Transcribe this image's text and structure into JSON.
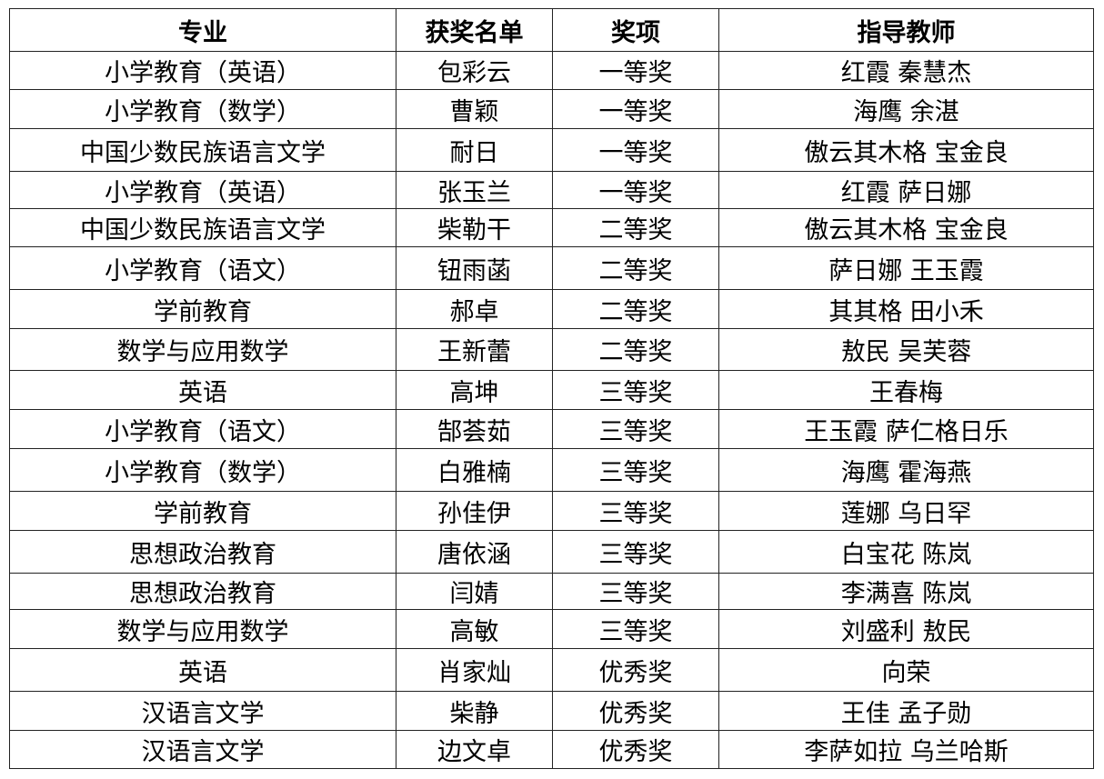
{
  "headers": [
    "专业",
    "获奖名单",
    "奖项",
    "指导教师"
  ],
  "rows": [
    [
      "小学教育（英语）",
      "包彩云",
      "一等奖",
      "红霞  秦慧杰"
    ],
    [
      "小学教育（数学）",
      "曹颖",
      "一等奖",
      "海鹰  余湛"
    ],
    [
      "中国少数民族语言文学",
      "耐日",
      "一等奖",
      "傲云其木格  宝金良"
    ],
    [
      "小学教育（英语）",
      "张玉兰",
      "一等奖",
      "红霞  萨日娜"
    ],
    [
      "中国少数民族语言文学",
      "柴勒干",
      "二等奖",
      "傲云其木格  宝金良"
    ],
    [
      "小学教育（语文）",
      "钮雨菡",
      "二等奖",
      "萨日娜  王玉霞"
    ],
    [
      "学前教育",
      "郝卓",
      "二等奖",
      "其其格  田小禾"
    ],
    [
      "数学与应用数学",
      "王新蕾",
      "二等奖",
      "敖民  吴芙蓉"
    ],
    [
      "英语",
      "高坤",
      "三等奖",
      "王春梅"
    ],
    [
      "小学教育（语文）",
      "郜荟茹",
      "三等奖",
      "王玉霞  萨仁格日乐"
    ],
    [
      "小学教育（数学）",
      "白雅楠",
      "三等奖",
      "海鹰  霍海燕"
    ],
    [
      "学前教育",
      "孙佳伊",
      "三等奖",
      "莲娜  乌日罕"
    ],
    [
      "思想政治教育",
      "唐依涵",
      "三等奖",
      "白宝花  陈岚"
    ],
    [
      "思想政治教育",
      "闫婧",
      "三等奖",
      "李满喜  陈岚"
    ],
    [
      "数学与应用数学",
      "高敏",
      "三等奖",
      "刘盛利  敖民"
    ],
    [
      "英语",
      "肖家灿",
      "优秀奖",
      "向荣"
    ],
    [
      "汉语言文学",
      "柴静",
      "优秀奖",
      "王佳  孟子勋"
    ],
    [
      "汉语言文学",
      "边文卓",
      "优秀奖",
      "李萨如拉  乌兰哈斯"
    ]
  ]
}
